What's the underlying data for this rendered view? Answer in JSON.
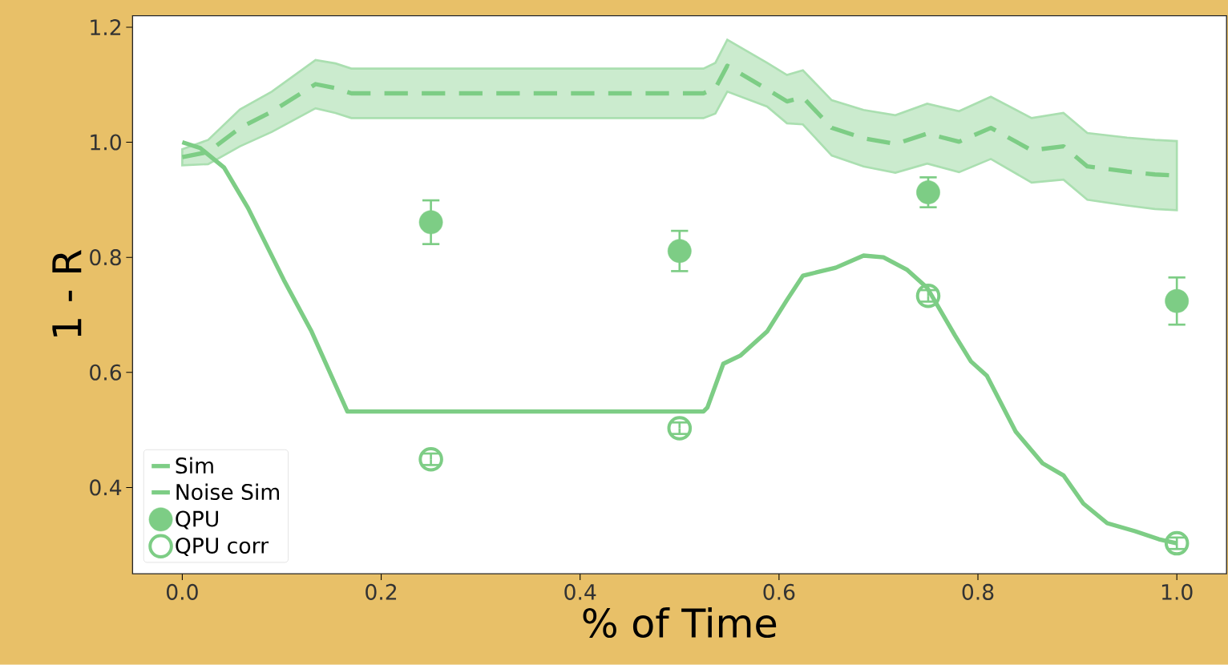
{
  "chart_data": {
    "type": "line",
    "xlabel": "% of Time",
    "ylabel": "1 - R",
    "xlim": [
      -0.05,
      1.05
    ],
    "ylim": [
      0.25,
      1.22
    ],
    "xticks": [
      {
        "value": 0,
        "label": "0.0"
      },
      {
        "value": 0.2,
        "label": "0.2"
      },
      {
        "value": 0.4,
        "label": "0.4"
      },
      {
        "value": 0.6,
        "label": "0.6"
      },
      {
        "value": 0.8,
        "label": "0.8"
      },
      {
        "value": 1,
        "label": "1.0"
      }
    ],
    "yticks": [
      {
        "value": 0.4,
        "label": "0.4"
      },
      {
        "value": 0.6,
        "label": "0.6"
      },
      {
        "value": 0.8,
        "label": "0.8"
      },
      {
        "value": 1,
        "label": "1.0"
      },
      {
        "value": 1.2,
        "label": "1.2"
      }
    ],
    "legend": "bottom left",
    "grid": false,
    "series": [
      {
        "name": "Sim",
        "color": "#7dcd85",
        "line_style": "solid",
        "marker": "none",
        "x": [
          0,
          0.018,
          0.042,
          0.066,
          0.102,
          0.13,
          0.166,
          0.17,
          0.524,
          0.528,
          0.544,
          0.561,
          0.588,
          0.608,
          0.624,
          0.657,
          0.685,
          0.705,
          0.729,
          0.749,
          0.777,
          0.793,
          0.809,
          0.838,
          0.865,
          0.886,
          0.906,
          0.93,
          0.958,
          0.982,
          1.0
        ],
        "values": [
          1.0,
          0.99,
          0.956,
          0.886,
          0.761,
          0.671,
          0.532,
          0.532,
          0.532,
          0.539,
          0.615,
          0.629,
          0.671,
          0.726,
          0.768,
          0.782,
          0.803,
          0.8,
          0.778,
          0.747,
          0.664,
          0.619,
          0.594,
          0.497,
          0.442,
          0.421,
          0.372,
          0.338,
          0.324,
          0.31,
          0.303
        ]
      },
      {
        "name": "Noise Sim",
        "color": "#7dcd85",
        "line_style": "dashed",
        "marker": "none",
        "x": [
          0,
          0.026,
          0.058,
          0.09,
          0.134,
          0.154,
          0.17,
          0.524,
          0.536,
          0.548,
          0.588,
          0.608,
          0.624,
          0.653,
          0.685,
          0.717,
          0.749,
          0.781,
          0.813,
          0.854,
          0.886,
          0.91,
          0.95,
          0.978,
          1.0
        ],
        "values": [
          0.974,
          0.983,
          1.025,
          1.053,
          1.101,
          1.094,
          1.085,
          1.085,
          1.094,
          1.133,
          1.092,
          1.071,
          1.078,
          1.025,
          1.007,
          0.997,
          1.015,
          1.001,
          1.025,
          0.986,
          0.993,
          0.958,
          0.949,
          0.944,
          0.942
        ],
        "lower": [
          0.96,
          0.962,
          0.993,
          1.018,
          1.059,
          1.051,
          1.042,
          1.042,
          1.05,
          1.088,
          1.062,
          1.033,
          1.031,
          0.977,
          0.958,
          0.947,
          0.963,
          0.948,
          0.971,
          0.93,
          0.935,
          0.9,
          0.89,
          0.884,
          0.882
        ],
        "upper": [
          0.988,
          1.004,
          1.057,
          1.088,
          1.143,
          1.137,
          1.128,
          1.128,
          1.138,
          1.178,
          1.138,
          1.117,
          1.125,
          1.073,
          1.056,
          1.047,
          1.067,
          1.054,
          1.079,
          1.042,
          1.051,
          1.016,
          1.008,
          1.004,
          1.002
        ]
      },
      {
        "name": "QPU",
        "type": "scatter",
        "color": "#7dcd85",
        "marker": "circle",
        "x": [
          0.25,
          0.5,
          0.75,
          1.0
        ],
        "values": [
          0.861,
          0.811,
          0.913,
          0.724
        ],
        "errors": [
          0.038,
          0.035,
          0.026,
          0.041
        ]
      },
      {
        "name": "QPU corr",
        "type": "scatter",
        "color": "#7dcd85",
        "marker": "open circle",
        "x": [
          0.25,
          0.5,
          0.75,
          1.0
        ],
        "values": [
          0.449,
          0.503,
          0.733,
          0.303
        ],
        "errors": [
          0.01,
          0.01,
          0.01,
          0.01
        ]
      }
    ]
  }
}
